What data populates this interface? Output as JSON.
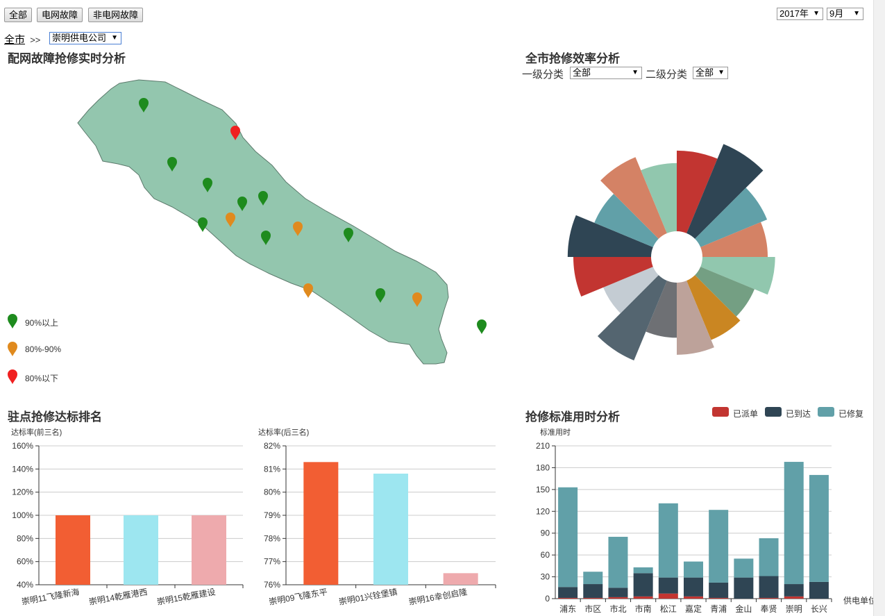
{
  "filters": {
    "all": "全部",
    "grid_fault": "电网故障",
    "non_grid_fault": "非电网故障",
    "year": "2017年",
    "month": "9月"
  },
  "breadcrumb": {
    "root": "全市",
    "sep": ">>",
    "company": "崇明供电公司"
  },
  "map_panel": {
    "title": "配网故障抢修实时分析",
    "legend": [
      {
        "label": "90%以上",
        "color": "#1e8b1e"
      },
      {
        "label": "80%-90%",
        "color": "#e08a1e"
      },
      {
        "label": "80%以下",
        "color": "#f02020"
      }
    ]
  },
  "efficiency_panel": {
    "title": "全市抢修效率分析",
    "level1_label": "一级分类",
    "level1_value": "全部",
    "level2_label": "二级分类",
    "level2_value": "全部"
  },
  "rank_panel": {
    "title": "驻点抢修达标排名",
    "top_label": "达标率(前三名)",
    "bottom_label": "达标率(后三名)"
  },
  "time_panel": {
    "title": "抢修标准用时分析",
    "y_label": "标准用时",
    "x_label": "供电单位",
    "legend": [
      "已派单",
      "已到达",
      "已修复"
    ]
  },
  "chart_data": [
    {
      "type": "bar",
      "title": "达标率(前三名)",
      "categories": [
        "崇明11飞隆新海",
        "崇明14乾雁港西",
        "崇明15乾雁建设"
      ],
      "values": [
        100,
        100,
        100
      ],
      "colors": [
        "#f25e33",
        "#9de6f0",
        "#eeaaad"
      ],
      "ylim": [
        40,
        160
      ],
      "yticks": [
        "40%",
        "60%",
        "80%",
        "100%",
        "120%",
        "140%",
        "160%"
      ]
    },
    {
      "type": "bar",
      "title": "达标率(后三名)",
      "categories": [
        "崇明09飞隆东平",
        "崇明01兴铨堡镇",
        "崇明16幸创启隆"
      ],
      "values": [
        81.3,
        80.8,
        76.5
      ],
      "colors": [
        "#f25e33",
        "#9de6f0",
        "#eeaaad"
      ],
      "ylim": [
        76,
        82
      ],
      "yticks": [
        "76%",
        "77%",
        "78%",
        "79%",
        "80%",
        "81%",
        "82%"
      ]
    },
    {
      "type": "bar",
      "stacked": true,
      "title": "抢修标准用时分析",
      "ylabel": "标准用时",
      "xlabel": "供电单位",
      "categories": [
        "浦东",
        "市区",
        "市北",
        "市南",
        "松江",
        "嘉定",
        "青浦",
        "金山",
        "奉贤",
        "崇明",
        "长兴"
      ],
      "series": [
        {
          "name": "已派单",
          "color": "#c23531",
          "values": [
            1,
            1,
            2,
            3,
            7,
            3,
            1,
            0,
            1,
            3,
            0
          ]
        },
        {
          "name": "已到达",
          "color": "#2f4554",
          "values": [
            15,
            19,
            13,
            32,
            22,
            26,
            21,
            29,
            30,
            17,
            23
          ]
        },
        {
          "name": "已修复",
          "color": "#61a0a8",
          "values": [
            137,
            17,
            70,
            8,
            102,
            22,
            100,
            26,
            52,
            168,
            147
          ]
        }
      ],
      "ylim": [
        0,
        210
      ],
      "yticks": [
        "0",
        "30",
        "60",
        "90",
        "120",
        "150",
        "180",
        "210"
      ]
    },
    {
      "type": "pie",
      "title": "全市抢修效率分析",
      "rose": true,
      "slices": [
        {
          "value": 142,
          "color": "#c23531"
        },
        {
          "value": 170,
          "color": "#2f4554"
        },
        {
          "value": 127,
          "color": "#61a0a8"
        },
        {
          "value": 115,
          "color": "#d48265"
        },
        {
          "value": 128,
          "color": "#91c7ae"
        },
        {
          "value": 103,
          "color": "#749f83"
        },
        {
          "value": 113,
          "color": "#ca8622"
        },
        {
          "value": 127,
          "color": "#bda29a"
        },
        {
          "value": 97,
          "color": "#6e7074"
        },
        {
          "value": 152,
          "color": "#546570"
        },
        {
          "value": 95,
          "color": "#c4ccd3"
        },
        {
          "value": 137,
          "color": "#c23531"
        },
        {
          "value": 147,
          "color": "#2f4554"
        },
        {
          "value": 112,
          "color": "#61a0a8"
        },
        {
          "value": 145,
          "color": "#d48265"
        },
        {
          "value": 120,
          "color": "#91c7ae"
        }
      ]
    }
  ],
  "map_markers": [
    {
      "level": 0
    },
    {
      "level": 2
    },
    {
      "level": 0
    },
    {
      "level": 0
    },
    {
      "level": 0
    },
    {
      "level": 0
    },
    {
      "level": 0
    },
    {
      "level": 1
    },
    {
      "level": 0
    },
    {
      "level": 1
    },
    {
      "level": 0
    },
    {
      "level": 1
    },
    {
      "level": 0
    },
    {
      "level": 1
    },
    {
      "level": 0
    }
  ]
}
